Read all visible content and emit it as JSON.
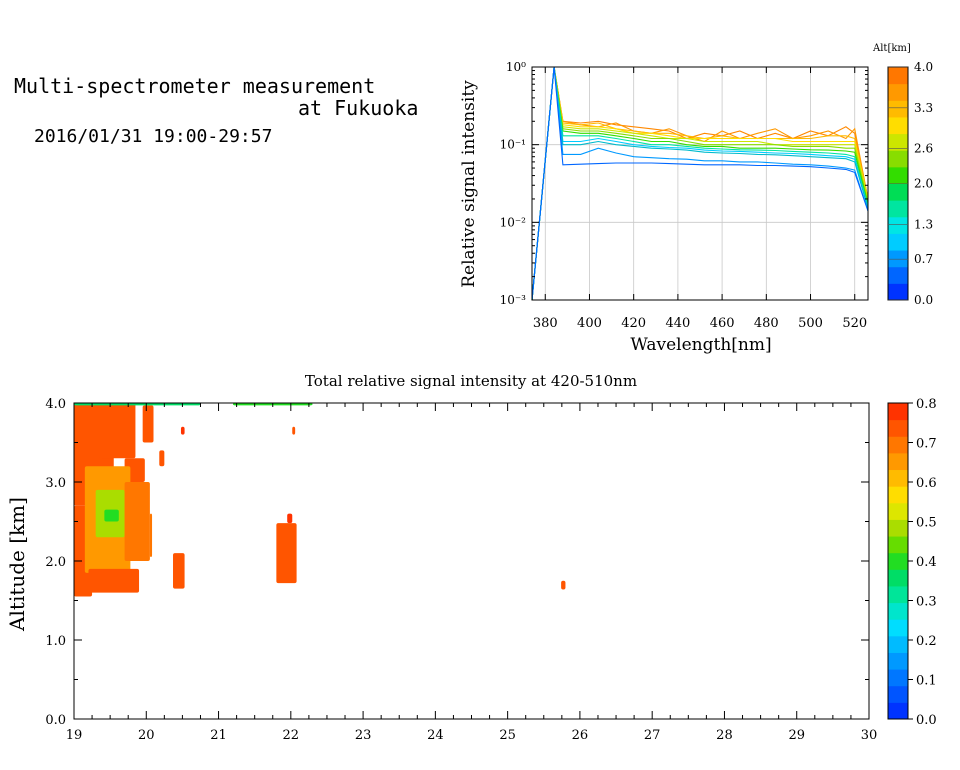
{
  "header": {
    "line1": "Multi-spectrometer measurement",
    "line2": "at Fukuoka",
    "line3": "2016/01/31 19:00-29:57"
  },
  "chart_data": [
    {
      "type": "line",
      "xlabel": "Wavelength[nm]",
      "ylabel": "Relative signal intensity",
      "xlim": [
        374,
        526
      ],
      "xticks": [
        380,
        400,
        420,
        440,
        460,
        480,
        500,
        520
      ],
      "yscale": "log",
      "ylim": [
        0.001,
        1
      ],
      "yticks": [
        "10⁻³",
        "10⁻²",
        "10⁻¹",
        "10⁰"
      ],
      "grid": true,
      "colorbar": {
        "title": "Alt[km]",
        "range": [
          0.0,
          4.0
        ],
        "tick_labels": [
          "0.0",
          "0.7",
          "1.3",
          "2.0",
          "2.6",
          "3.3",
          "4.0"
        ],
        "colors": [
          "#0033ff",
          "#0066ff",
          "#0099ff",
          "#00ccff",
          "#00e5e5",
          "#00e5a0",
          "#00dd55",
          "#33dd00",
          "#88dd00",
          "#cce600",
          "#ffdd00",
          "#ffbb00",
          "#ff9900",
          "#ff7700"
        ]
      },
      "x": [
        374,
        384,
        388,
        396,
        404,
        412,
        420,
        428,
        436,
        444,
        452,
        460,
        468,
        476,
        484,
        492,
        500,
        508,
        516,
        520,
        526
      ],
      "series": [
        {
          "color": "#ff8800",
          "values": [
            0.001,
            1.0,
            0.2,
            0.19,
            0.2,
            0.18,
            0.17,
            0.16,
            0.15,
            0.12,
            0.14,
            0.13,
            0.15,
            0.12,
            0.14,
            0.12,
            0.15,
            0.13,
            0.17,
            0.14,
            0.02
          ]
        },
        {
          "color": "#ff9900",
          "values": [
            0.001,
            1.0,
            0.2,
            0.18,
            0.17,
            0.19,
            0.15,
            0.14,
            0.16,
            0.13,
            0.11,
            0.15,
            0.12,
            0.14,
            0.16,
            0.12,
            0.13,
            0.15,
            0.12,
            0.16,
            0.02
          ]
        },
        {
          "color": "#ffbb00",
          "values": [
            0.001,
            1.0,
            0.19,
            0.18,
            0.19,
            0.16,
            0.15,
            0.14,
            0.14,
            0.13,
            0.12,
            0.13,
            0.12,
            0.12,
            0.12,
            0.12,
            0.12,
            0.13,
            0.13,
            0.12,
            0.02
          ]
        },
        {
          "color": "#ffdd00",
          "values": [
            0.001,
            1.0,
            0.18,
            0.17,
            0.17,
            0.16,
            0.14,
            0.14,
            0.13,
            0.12,
            0.12,
            0.12,
            0.12,
            0.12,
            0.12,
            0.11,
            0.11,
            0.11,
            0.11,
            0.11,
            0.02
          ]
        },
        {
          "color": "#cce600",
          "values": [
            0.001,
            1.0,
            0.17,
            0.16,
            0.16,
            0.15,
            0.14,
            0.13,
            0.12,
            0.12,
            0.11,
            0.11,
            0.11,
            0.11,
            0.1,
            0.1,
            0.1,
            0.1,
            0.1,
            0.1,
            0.02
          ]
        },
        {
          "color": "#88dd00",
          "values": [
            0.001,
            1.0,
            0.16,
            0.15,
            0.15,
            0.14,
            0.13,
            0.12,
            0.12,
            0.11,
            0.1,
            0.1,
            0.1,
            0.1,
            0.1,
            0.095,
            0.095,
            0.095,
            0.09,
            0.09,
            0.018
          ]
        },
        {
          "color": "#33dd00",
          "values": [
            0.001,
            1.0,
            0.15,
            0.14,
            0.14,
            0.13,
            0.12,
            0.11,
            0.11,
            0.1,
            0.095,
            0.095,
            0.09,
            0.09,
            0.09,
            0.088,
            0.086,
            0.085,
            0.083,
            0.08,
            0.017
          ]
        },
        {
          "color": "#00e5a0",
          "values": [
            0.001,
            1.0,
            0.13,
            0.13,
            0.13,
            0.12,
            0.11,
            0.1,
            0.1,
            0.095,
            0.09,
            0.088,
            0.086,
            0.085,
            0.084,
            0.082,
            0.08,
            0.078,
            0.075,
            0.07,
            0.016
          ]
        },
        {
          "color": "#00ccff",
          "values": [
            0.001,
            1.0,
            0.11,
            0.11,
            0.12,
            0.11,
            0.1,
            0.095,
            0.092,
            0.09,
            0.085,
            0.083,
            0.082,
            0.08,
            0.078,
            0.077,
            0.075,
            0.072,
            0.07,
            0.065,
            0.015
          ]
        },
        {
          "color": "#00bbcc",
          "values": [
            0.001,
            1.0,
            0.1,
            0.1,
            0.11,
            0.1,
            0.095,
            0.09,
            0.088,
            0.085,
            0.08,
            0.078,
            0.077,
            0.075,
            0.074,
            0.072,
            0.07,
            0.068,
            0.066,
            0.06,
            0.015
          ]
        },
        {
          "color": "#0099ff",
          "values": [
            0.001,
            1.0,
            0.075,
            0.075,
            0.09,
            0.078,
            0.07,
            0.068,
            0.066,
            0.065,
            0.062,
            0.062,
            0.06,
            0.06,
            0.058,
            0.056,
            0.055,
            0.053,
            0.05,
            0.047,
            0.014
          ]
        },
        {
          "color": "#0066ff",
          "values": [
            0.001,
            1.0,
            0.055,
            0.056,
            0.057,
            0.058,
            0.058,
            0.058,
            0.057,
            0.056,
            0.055,
            0.055,
            0.055,
            0.054,
            0.054,
            0.053,
            0.052,
            0.05,
            0.048,
            0.044,
            0.014
          ]
        }
      ]
    },
    {
      "type": "heatmap",
      "title": "Total relative signal intensity at 420-510nm",
      "ylabel": "Altitude [km]",
      "xlim": [
        19,
        30
      ],
      "ylim": [
        0.0,
        4.0
      ],
      "xtick_labels": [
        "19",
        "20",
        "21",
        "22",
        "23",
        "24",
        "25",
        "26",
        "27",
        "28",
        "29",
        "30"
      ],
      "ytick_labels": [
        "0.0",
        "1.0",
        "2.0",
        "3.0",
        "4.0"
      ],
      "colorbar": {
        "range": [
          0.0,
          0.8
        ],
        "tick_labels": [
          "0.0",
          "0.1",
          "0.2",
          "0.3",
          "0.4",
          "0.5",
          "0.6",
          "0.7",
          "0.8"
        ],
        "colors": [
          "#0033ff",
          "#0055ff",
          "#0077ff",
          "#0099ff",
          "#00bbff",
          "#00ddff",
          "#00e5cc",
          "#00e599",
          "#00dd66",
          "#22dd22",
          "#66dd00",
          "#aadd00",
          "#dde600",
          "#ffdd00",
          "#ffbb00",
          "#ff9900",
          "#ff7700",
          "#ff5500",
          "#ff3300"
        ]
      },
      "regions": [
        {
          "x": [
            19.0,
            19.55
          ],
          "y": [
            2.7,
            4.0
          ],
          "value": 0.74
        },
        {
          "x": [
            19.35,
            19.85
          ],
          "y": [
            3.3,
            4.0
          ],
          "value": 0.75
        },
        {
          "x": [
            19.95,
            20.1
          ],
          "y": [
            3.5,
            3.97
          ],
          "value": 0.73
        },
        {
          "x": [
            20.18,
            20.25
          ],
          "y": [
            3.2,
            3.4
          ],
          "value": 0.75
        },
        {
          "x": [
            20.48,
            20.53
          ],
          "y": [
            3.6,
            3.7
          ],
          "value": 0.76
        },
        {
          "x": [
            19.7,
            19.98
          ],
          "y": [
            3.0,
            3.3
          ],
          "value": 0.73
        },
        {
          "x": [
            19.0,
            19.25
          ],
          "y": [
            1.55,
            2.7
          ],
          "value": 0.75
        },
        {
          "x": [
            19.15,
            19.78
          ],
          "y": [
            1.85,
            3.2
          ],
          "value": 0.66
        },
        {
          "x": [
            19.3,
            19.7
          ],
          "y": [
            2.3,
            2.9
          ],
          "value": 0.5
        },
        {
          "x": [
            19.42,
            19.62
          ],
          "y": [
            2.5,
            2.65
          ],
          "value": 0.38
        },
        {
          "x": [
            19.7,
            20.05
          ],
          "y": [
            2.0,
            3.0
          ],
          "value": 0.7
        },
        {
          "x": [
            20.05,
            20.08
          ],
          "y": [
            2.05,
            2.6
          ],
          "value": 0.7
        },
        {
          "x": [
            19.2,
            19.9
          ],
          "y": [
            1.6,
            1.9
          ],
          "value": 0.74
        },
        {
          "x": [
            20.37,
            20.53
          ],
          "y": [
            1.65,
            2.1
          ],
          "value": 0.74
        },
        {
          "x": [
            21.8,
            22.08
          ],
          "y": [
            1.72,
            2.48
          ],
          "value": 0.75
        },
        {
          "x": [
            21.95,
            22.02
          ],
          "y": [
            2.48,
            2.6
          ],
          "value": 0.76
        },
        {
          "x": [
            22.02,
            22.06
          ],
          "y": [
            3.6,
            3.7
          ],
          "value": 0.75
        },
        {
          "x": [
            25.74,
            25.8
          ],
          "y": [
            1.64,
            1.75
          ],
          "value": 0.74
        },
        {
          "x": [
            19.0,
            20.75
          ],
          "y": [
            3.97,
            4.0
          ],
          "value": 0.35
        },
        {
          "x": [
            21.2,
            22.3
          ],
          "y": [
            3.97,
            4.0
          ],
          "value": 0.4
        }
      ]
    }
  ]
}
